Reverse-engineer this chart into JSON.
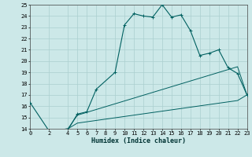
{
  "xlabel": "Humidex (Indice chaleur)",
  "bg_color": "#cce8e8",
  "grid_color": "#aacfcf",
  "line_color": "#006060",
  "xlim": [
    0,
    23
  ],
  "ylim": [
    14,
    25
  ],
  "xticks": [
    0,
    2,
    4,
    5,
    6,
    7,
    8,
    9,
    10,
    11,
    12,
    13,
    14,
    15,
    16,
    17,
    18,
    19,
    20,
    21,
    22,
    23
  ],
  "yticks": [
    14,
    15,
    16,
    17,
    18,
    19,
    20,
    21,
    22,
    23,
    24,
    25
  ],
  "line1_x": [
    0,
    2,
    4,
    5,
    6,
    7,
    9,
    10,
    11,
    12,
    13,
    14,
    15,
    16,
    17,
    18,
    19,
    20,
    21,
    22,
    23
  ],
  "line1_y": [
    16.3,
    13.8,
    13.9,
    15.3,
    15.5,
    17.5,
    19.0,
    23.2,
    24.2,
    24.0,
    23.9,
    25.0,
    23.9,
    24.1,
    22.7,
    20.5,
    20.7,
    21.0,
    19.4,
    18.9,
    17.0
  ],
  "line2_x": [
    2,
    4,
    5,
    22,
    23
  ],
  "line2_y": [
    13.8,
    14.0,
    15.2,
    19.5,
    17.0
  ],
  "line3_x": [
    2,
    4,
    5,
    22,
    23
  ],
  "line3_y": [
    13.8,
    14.0,
    14.5,
    16.5,
    17.0
  ]
}
